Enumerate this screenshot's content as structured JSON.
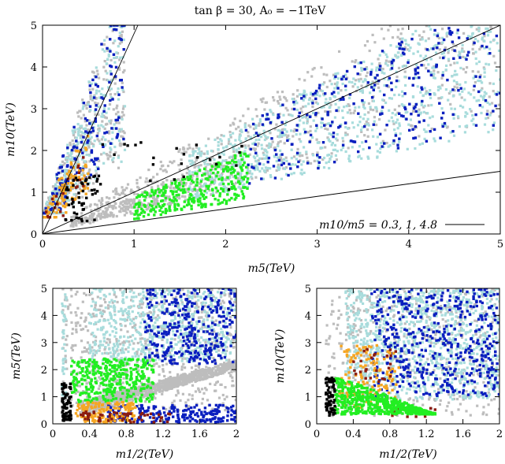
{
  "figure_title": "tan β = 30, A₀ = −1TeV",
  "colors": {
    "gray": "#bdbdbd",
    "aqua": "#a8dcdc",
    "blue": "#0a1fbf",
    "green": "#22ee22",
    "orange": "#f5a623",
    "darkred": "#8b1c10",
    "black": "#000000"
  },
  "chart_data": [
    {
      "id": "top",
      "type": "scatter",
      "xlabel": "m5(TeV)",
      "ylabel": "m10(TeV)",
      "xlim": [
        0,
        5
      ],
      "ylim": [
        0,
        5
      ],
      "xticks": [
        "0",
        "1",
        "2",
        "3",
        "4",
        "5"
      ],
      "yticks": [
        "0",
        "1",
        "2",
        "3",
        "4",
        "5"
      ],
      "reference_lines": {
        "slopes": [
          0.3,
          1,
          4.8
        ],
        "legend_label": "m10/m5 = 0.3, 1, 4.8"
      },
      "series": [
        {
          "name": "gray",
          "color_key": "gray",
          "regions": [
            {
              "xmin": 0.0,
              "xmax": 0.9,
              "lo": 0.5,
              "hi": 5.0,
              "n": 380,
              "shape": "cone",
              "slope_lo": 1.8,
              "slope_hi": 6.5
            },
            {
              "xmin": 0.3,
              "xmax": 5.0,
              "lo": 0.55,
              "hi": 1.35,
              "n": 700,
              "shape": "rel"
            },
            {
              "xmin": 0.3,
              "xmax": 2.2,
              "lo": 0.5,
              "hi": 0.9,
              "n": 250,
              "shape": "rel"
            }
          ]
        },
        {
          "name": "aqua",
          "color_key": "aqua",
          "regions": [
            {
              "xmin": 0.0,
              "xmax": 0.9,
              "lo": 0.5,
              "hi": 5.0,
              "n": 300,
              "shape": "cone",
              "slope_lo": 1.8,
              "slope_hi": 6.5
            },
            {
              "xmin": 1.6,
              "xmax": 5.0,
              "lo": 0.5,
              "hi": 1.2,
              "n": 850,
              "shape": "rel"
            }
          ]
        },
        {
          "name": "blue",
          "color_key": "blue",
          "regions": [
            {
              "xmin": 0.0,
              "xmax": 0.9,
              "lo": 0.5,
              "hi": 5.0,
              "n": 160,
              "shape": "cone",
              "slope_lo": 2.2,
              "slope_hi": 6.5
            },
            {
              "xmin": 2.2,
              "xmax": 5.0,
              "lo": 0.52,
              "hi": 1.18,
              "n": 280,
              "shape": "rel"
            }
          ]
        },
        {
          "name": "orange",
          "color_key": "orange",
          "regions": [
            {
              "xmin": 0.0,
              "xmax": 0.5,
              "lo": 0.4,
              "hi": 3.3,
              "n": 110,
              "shape": "cone",
              "slope_lo": 1.7,
              "slope_hi": 4.6
            }
          ]
        },
        {
          "name": "dark red",
          "color_key": "darkred",
          "regions": [
            {
              "xmin": 0.0,
              "xmax": 0.45,
              "lo": 0.4,
              "hi": 2.7,
              "n": 22,
              "shape": "cone",
              "slope_lo": 1.8,
              "slope_hi": 4.5
            }
          ]
        },
        {
          "name": "green",
          "color_key": "green",
          "regions": [
            {
              "xmin": 1.0,
              "xmax": 2.25,
              "lo": 0.35,
              "hi": 0.9,
              "n": 320,
              "shape": "rel"
            }
          ]
        },
        {
          "name": "black",
          "color_key": "black",
          "regions": [
            {
              "xmin": 0.25,
              "xmax": 0.6,
              "lo": 0.3,
              "hi": 1.4,
              "n": 50,
              "shape": "box"
            },
            {
              "xmin": 0.55,
              "xmax": 2.2,
              "lo": 1.05,
              "hi": 2.2,
              "n": 25,
              "shape": "box"
            }
          ]
        }
      ]
    },
    {
      "id": "bottom-left",
      "type": "scatter",
      "xlabel": "m1/2(TeV)",
      "ylabel": "m5(TeV)",
      "xlim": [
        0,
        2
      ],
      "ylim": [
        0,
        5
      ],
      "xticks": [
        "0",
        "0.4",
        "0.8",
        "1.2",
        "1.6",
        "2"
      ],
      "yticks": [
        "0",
        "1",
        "2",
        "3",
        "4",
        "5"
      ],
      "series": [
        {
          "name": "gray",
          "color_key": "gray",
          "regions": [
            {
              "xmin": 0.1,
              "xmax": 2.0,
              "lo": 0.5,
              "hi": 5.0,
              "n": 650,
              "shape": "box"
            }
          ]
        },
        {
          "name": "aqua",
          "color_key": "aqua",
          "regions": [
            {
              "xmin": 0.4,
              "xmax": 2.0,
              "lo": 2.3,
              "hi": 5.0,
              "n": 600,
              "shape": "box"
            },
            {
              "xmin": 0.1,
              "xmax": 0.15,
              "lo": 0.8,
              "hi": 4.8,
              "n": 40,
              "shape": "box"
            }
          ]
        },
        {
          "name": "gray wedge",
          "color_key": "gray",
          "regions": [
            {
              "xmin": 0.3,
              "xmax": 2.0,
              "lo": 0.7,
              "hi": 1.25,
              "n": 950,
              "shape": "linear",
              "a_lo": 1.0,
              "b_lo": 0.0,
              "a_hi": 0.9,
              "b_hi": 0.55
            }
          ]
        },
        {
          "name": "blue",
          "color_key": "blue",
          "regions": [
            {
              "xmin": 1.0,
              "xmax": 2.0,
              "lo": 2.2,
              "hi": 5.0,
              "n": 330,
              "shape": "box"
            },
            {
              "xmin": 0.6,
              "xmax": 2.0,
              "lo": 0.05,
              "hi": 0.7,
              "n": 220,
              "shape": "box"
            }
          ]
        },
        {
          "name": "green",
          "color_key": "green",
          "regions": [
            {
              "xmin": 0.2,
              "xmax": 1.1,
              "lo": 0.8,
              "hi": 2.4,
              "n": 360,
              "shape": "box"
            }
          ]
        },
        {
          "name": "orange",
          "color_key": "orange",
          "regions": [
            {
              "xmin": 0.25,
              "xmax": 0.9,
              "lo": 0.05,
              "hi": 0.8,
              "n": 140,
              "shape": "box"
            }
          ]
        },
        {
          "name": "dark red",
          "color_key": "darkred",
          "regions": [
            {
              "xmin": 0.3,
              "xmax": 1.3,
              "lo": 0.05,
              "hi": 0.45,
              "n": 55,
              "shape": "box"
            }
          ]
        },
        {
          "name": "black",
          "color_key": "black",
          "regions": [
            {
              "xmin": 0.1,
              "xmax": 0.2,
              "lo": 0.1,
              "hi": 1.5,
              "n": 70,
              "shape": "box"
            }
          ]
        }
      ]
    },
    {
      "id": "bottom-right",
      "type": "scatter",
      "xlabel": "m1/2(TeV)",
      "ylabel": "m10(TeV)",
      "xlim": [
        0,
        2
      ],
      "ylim": [
        0,
        5
      ],
      "xticks": [
        "0",
        "0.4",
        "0.8",
        "1.2",
        "1.6",
        "2"
      ],
      "yticks": [
        "0",
        "1",
        "2",
        "3",
        "4",
        "5"
      ],
      "series": [
        {
          "name": "gray",
          "color_key": "gray",
          "regions": [
            {
              "xmin": 0.1,
              "xmax": 2.0,
              "lo": 0.3,
              "hi": 5.0,
              "n": 500,
              "shape": "box"
            }
          ]
        },
        {
          "name": "aqua",
          "color_key": "aqua",
          "regions": [
            {
              "xmin": 0.3,
              "xmax": 2.0,
              "lo": 0.9,
              "hi": 5.0,
              "n": 1000,
              "shape": "box"
            }
          ]
        },
        {
          "name": "blue",
          "color_key": "blue",
          "regions": [
            {
              "xmin": 0.6,
              "xmax": 2.0,
              "lo": 1.0,
              "hi": 5.0,
              "n": 480,
              "shape": "box"
            }
          ]
        },
        {
          "name": "orange",
          "color_key": "orange",
          "regions": [
            {
              "xmin": 0.25,
              "xmax": 0.9,
              "lo": 0.6,
              "hi": 2.9,
              "n": 130,
              "shape": "box"
            }
          ]
        },
        {
          "name": "dark red",
          "color_key": "darkred",
          "regions": [
            {
              "xmin": 0.4,
              "xmax": 0.9,
              "lo": 1.5,
              "hi": 2.8,
              "n": 25,
              "shape": "box"
            },
            {
              "xmin": 0.8,
              "xmax": 1.3,
              "lo": 0.25,
              "hi": 0.6,
              "n": 20,
              "shape": "box"
            }
          ]
        },
        {
          "name": "green",
          "color_key": "green",
          "regions": [
            {
              "xmin": 0.2,
              "xmax": 1.3,
              "lo": 0.35,
              "hi": 1.8,
              "n": 600,
              "shape": "tri"
            }
          ]
        },
        {
          "name": "black",
          "color_key": "black",
          "regions": [
            {
              "xmin": 0.1,
              "xmax": 0.2,
              "lo": 0.3,
              "hi": 1.7,
              "n": 70,
              "shape": "box"
            }
          ]
        }
      ]
    }
  ]
}
